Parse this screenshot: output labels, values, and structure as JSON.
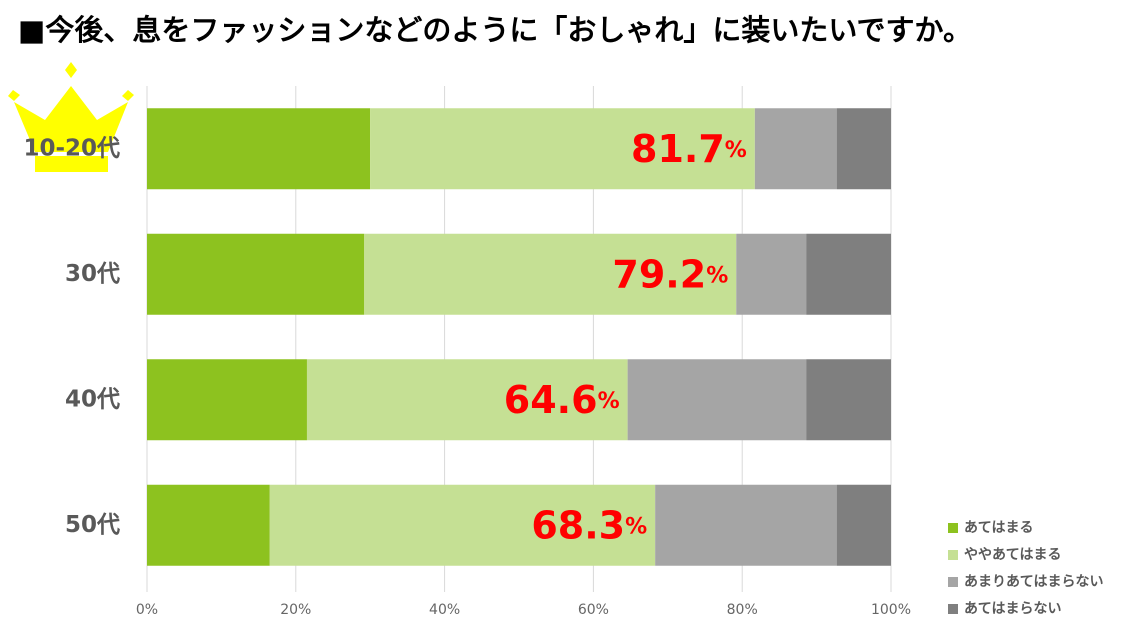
{
  "chart_data": {
    "type": "stacked_barh",
    "title": "■今後、息をファッションなどのように「おしゃれ」に装いたいですか。",
    "categories": [
      "10-20代",
      "30代",
      "40代",
      "50代"
    ],
    "series": [
      {
        "name": "あてはまる",
        "color": "#8dc21f",
        "values": [
          30.0,
          29.2,
          21.5,
          16.5
        ]
      },
      {
        "name": "ややあてはまる",
        "color": "#c5e094",
        "values": [
          51.7,
          50.0,
          43.1,
          51.8
        ]
      },
      {
        "name": "あまりあてはまらない",
        "color": "#a5a5a5",
        "values": [
          11.0,
          9.4,
          24.0,
          24.4
        ]
      },
      {
        "name": "あてはまらない",
        "color": "#7f7f7f",
        "values": [
          7.3,
          11.4,
          11.4,
          7.3
        ]
      }
    ],
    "highlight_values": [
      81.7,
      79.2,
      64.6,
      68.3
    ],
    "highlight_unit": "%",
    "highlight_color": "#ff0000",
    "xlim": [
      0,
      100
    ],
    "xticks": [
      {
        "value": 0,
        "label": "0%"
      },
      {
        "value": 20,
        "label": "20%"
      },
      {
        "value": 40,
        "label": "40%"
      },
      {
        "value": 60,
        "label": "60%"
      },
      {
        "value": 80,
        "label": "80%"
      },
      {
        "value": 100,
        "label": "100%"
      }
    ],
    "grid": true,
    "legend": "bottom-right"
  }
}
